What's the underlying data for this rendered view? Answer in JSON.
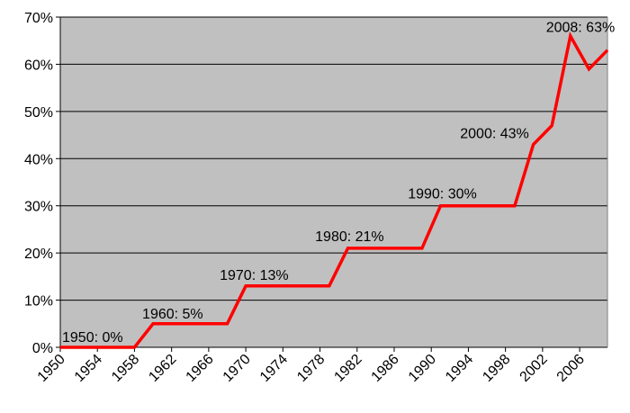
{
  "chart_data": {
    "type": "line",
    "title": "",
    "xlabel": "",
    "ylabel": "",
    "xlim": [
      1950,
      2008
    ],
    "ylim": [
      0,
      70
    ],
    "y_unit": "%",
    "grid": "horizontal",
    "x_ticks": [
      "1950",
      "1954",
      "1958",
      "1962",
      "1966",
      "1970",
      "1974",
      "1978",
      "1982",
      "1986",
      "1990",
      "1994",
      "1998",
      "2002",
      "2006"
    ],
    "y_ticks": [
      "0%",
      "10%",
      "20%",
      "30%",
      "40%",
      "50%",
      "60%",
      "70%"
    ],
    "series": [
      {
        "name": "",
        "color": "#ff0000",
        "x": [
          1950,
          1958,
          1960,
          1968,
          1970,
          1979,
          1981,
          1989,
          1991,
          1999,
          2001,
          2003,
          2005,
          2007,
          2009
        ],
        "y": [
          0,
          0,
          5,
          5,
          13,
          13,
          21,
          21,
          30,
          30,
          43,
          47,
          66,
          59,
          63
        ]
      }
    ],
    "annotations": [
      {
        "text": "1950: 0%",
        "x": 1950,
        "y": 0
      },
      {
        "text": "1960: 5%",
        "x": 1960,
        "y": 5
      },
      {
        "text": "1970: 13%",
        "x": 1970,
        "y": 13
      },
      {
        "text": "1980: 21%",
        "x": 1980,
        "y": 21
      },
      {
        "text": "1990: 30%",
        "x": 1990,
        "y": 30
      },
      {
        "text": "2000: 43%",
        "x": 2000,
        "y": 43
      },
      {
        "text": "2008: 63%",
        "x": 2008,
        "y": 63
      }
    ],
    "colors": {
      "plot_background": "#c0c0c0",
      "grid": "#000000",
      "line": "#ff0000"
    }
  }
}
